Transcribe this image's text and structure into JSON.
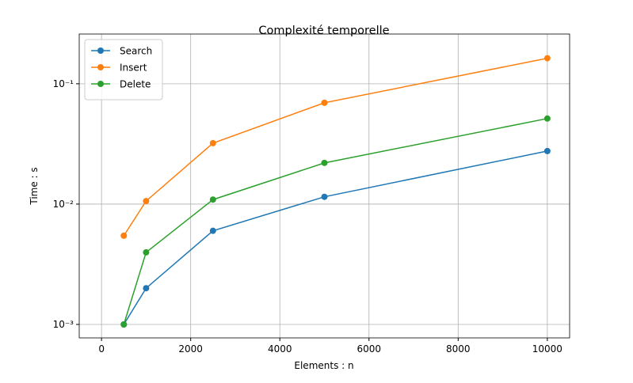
{
  "chart_data": {
    "type": "line",
    "title": "Complexité temporelle",
    "x_label": "Elements : n",
    "y_label": "Time : s",
    "x": [
      500,
      1000,
      2500,
      5000,
      10000
    ],
    "series": [
      {
        "name": "Search",
        "color": "#1f77b4",
        "values": [
          0.001,
          0.002,
          0.006,
          0.0115,
          0.0276
        ]
      },
      {
        "name": "Insert",
        "color": "#ff7f0e",
        "values": [
          0.00546,
          0.0106,
          0.0321,
          0.0695,
          0.163
        ]
      },
      {
        "name": "Delete",
        "color": "#2ca02c",
        "values": [
          0.001,
          0.00397,
          0.0109,
          0.022,
          0.0514
        ]
      }
    ],
    "xlim": [
      -500,
      10500
    ],
    "xticks": [
      0,
      2000,
      4000,
      6000,
      8000,
      10000
    ],
    "ylim": [
      0.000773,
      0.259
    ],
    "yticks": [
      {
        "value": 0.001,
        "label": "10⁻³"
      },
      {
        "value": 0.01,
        "label": "10⁻²"
      },
      {
        "value": 0.1,
        "label": "10⁻¹"
      }
    ],
    "log_y": true,
    "grid": true,
    "legend": "upper left"
  }
}
